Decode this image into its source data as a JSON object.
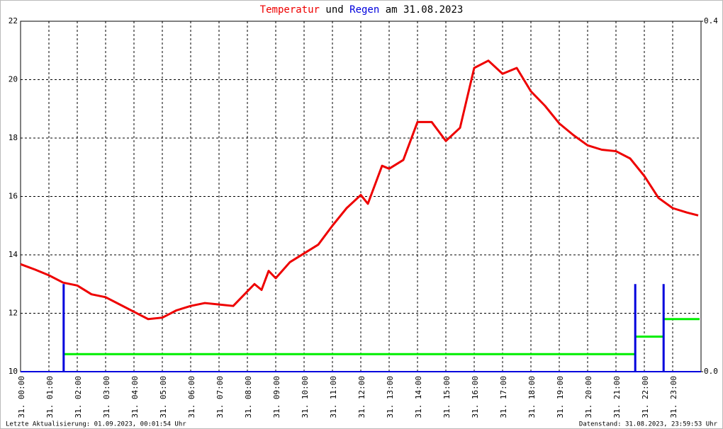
{
  "chart_data": {
    "type": "line",
    "title_connector": "und",
    "title_suffix": "am 31.08.2023",
    "xlim": [
      0,
      24
    ],
    "xticks": [
      {
        "value": 0,
        "label": "31. 00:00"
      },
      {
        "value": 1,
        "label": "31. 01:00"
      },
      {
        "value": 2,
        "label": "31. 02:00"
      },
      {
        "value": 3,
        "label": "31. 03:00"
      },
      {
        "value": 4,
        "label": "31. 04:00"
      },
      {
        "value": 5,
        "label": "31. 05:00"
      },
      {
        "value": 6,
        "label": "31. 06:00"
      },
      {
        "value": 7,
        "label": "31. 07:00"
      },
      {
        "value": 8,
        "label": "31. 08:00"
      },
      {
        "value": 9,
        "label": "31. 09:00"
      },
      {
        "value": 10,
        "label": "31. 10:00"
      },
      {
        "value": 11,
        "label": "31. 11:00"
      },
      {
        "value": 12,
        "label": "31. 12:00"
      },
      {
        "value": 13,
        "label": "31. 13:00"
      },
      {
        "value": 14,
        "label": "31. 14:00"
      },
      {
        "value": 15,
        "label": "31. 15:00"
      },
      {
        "value": 16,
        "label": "31. 16:00"
      },
      {
        "value": 17,
        "label": "31. 17:00"
      },
      {
        "value": 18,
        "label": "31. 18:00"
      },
      {
        "value": 19,
        "label": "31. 19:00"
      },
      {
        "value": 20,
        "label": "31. 20:00"
      },
      {
        "value": 21,
        "label": "31. 21:00"
      },
      {
        "value": 22,
        "label": "31. 22:00"
      },
      {
        "value": 23,
        "label": "31. 23:00"
      }
    ],
    "ylim": [
      10,
      22
    ],
    "yticks": [
      10,
      12,
      14,
      16,
      18,
      20,
      22
    ],
    "y2lim": [
      0,
      0.4
    ],
    "y2ticks": [
      {
        "value": 0,
        "label": "0.0"
      },
      {
        "value": 0.4,
        "label": "0.4"
      }
    ],
    "grid": true,
    "series": [
      {
        "name": "Temperatur",
        "color": "#ee0000",
        "x": [
          0,
          0.5,
          1,
          1.5,
          2,
          2.5,
          3,
          3.5,
          4,
          4.5,
          5,
          5.5,
          6,
          6.5,
          7,
          7.5,
          8,
          8.25,
          8.5,
          8.75,
          9,
          9.5,
          10,
          10.5,
          11,
          11.5,
          12,
          12.25,
          12.5,
          12.75,
          13,
          13.5,
          14,
          14.5,
          15,
          15.5,
          16,
          16.5,
          17,
          17.5,
          18,
          18.5,
          19,
          19.5,
          20,
          20.5,
          21,
          21.5,
          22,
          22.5,
          23,
          23.5,
          23.9
        ],
        "values": [
          13.68,
          13.5,
          13.3,
          13.05,
          12.95,
          12.65,
          12.55,
          12.3,
          12.05,
          11.8,
          11.85,
          12.1,
          12.25,
          12.35,
          12.3,
          12.25,
          12.75,
          13.0,
          12.8,
          13.45,
          13.2,
          13.75,
          14.05,
          14.35,
          15.0,
          15.6,
          16.05,
          15.75,
          16.4,
          17.05,
          16.95,
          17.25,
          18.55,
          18.55,
          17.9,
          18.35,
          20.4,
          20.65,
          20.2,
          20.4,
          19.6,
          19.1,
          18.5,
          18.1,
          17.75,
          17.6,
          17.55,
          17.3,
          16.7,
          15.95,
          15.6,
          15.45,
          15.35
        ]
      },
      {
        "name": "Regen",
        "color": "#0000dd",
        "axis": "y2",
        "kind": "bar",
        "x": [
          1.52,
          21.68,
          22.68
        ],
        "values": [
          0.1,
          0.1,
          0.1
        ]
      },
      {
        "color": "#00ee00",
        "axis": "y2",
        "kind": "step",
        "x": [
          1.52,
          21.68,
          22.68
        ],
        "values": [
          0.02,
          0.04,
          0.06
        ]
      }
    ],
    "footer_left": "Letzte Aktualisierung: 01.09.2023, 00:01:54 Uhr",
    "footer_right": "Datenstand: 31.08.2023, 23:59:53 Uhr"
  }
}
